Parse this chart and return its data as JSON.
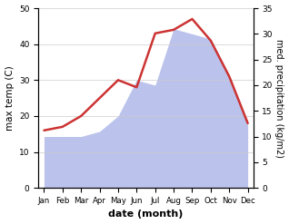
{
  "months": [
    "Jan",
    "Feb",
    "Mar",
    "Apr",
    "May",
    "Jun",
    "Jul",
    "Aug",
    "Sep",
    "Oct",
    "Nov",
    "Dec"
  ],
  "temp_line": [
    16,
    17,
    20,
    25,
    30,
    28,
    43,
    44,
    47,
    41,
    31,
    18
  ],
  "precip_fill": [
    10,
    10,
    10,
    11,
    14,
    21,
    20,
    31,
    30,
    29,
    22,
    13
  ],
  "fill_color": "#b0b8e8",
  "line_color": "#cc3333",
  "ylabel_left": "max temp (C)",
  "ylabel_right": "med. precipitation (kg/m2)",
  "xlabel": "date (month)",
  "ylim_left": [
    0,
    50
  ],
  "ylim_right": [
    0,
    35
  ],
  "yticks_left": [
    0,
    10,
    20,
    30,
    40,
    50
  ],
  "yticks_right": [
    0,
    5,
    10,
    15,
    20,
    25,
    30,
    35
  ]
}
